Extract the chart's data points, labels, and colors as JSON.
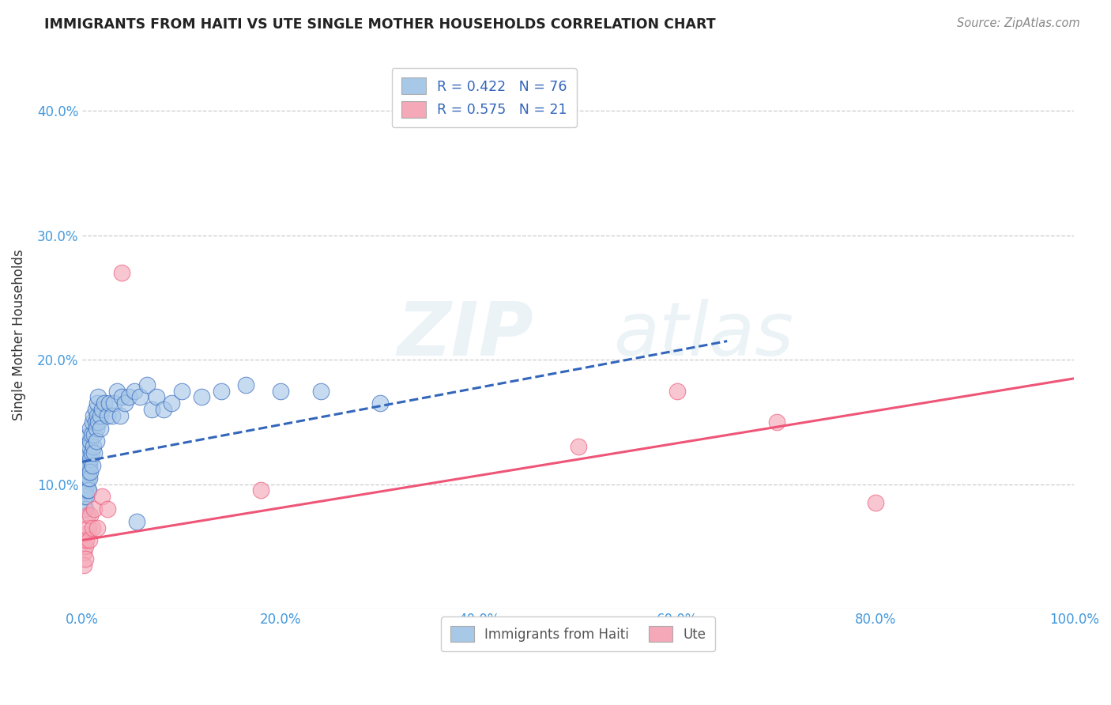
{
  "title": "IMMIGRANTS FROM HAITI VS UTE SINGLE MOTHER HOUSEHOLDS CORRELATION CHART",
  "source_text": "Source: ZipAtlas.com",
  "ylabel": "Single Mother Households",
  "xlim": [
    0,
    1.0
  ],
  "ylim": [
    0,
    0.44
  ],
  "xticks": [
    0.0,
    0.2,
    0.4,
    0.6,
    0.8,
    1.0
  ],
  "xtick_labels": [
    "0.0%",
    "20.0%",
    "40.0%",
    "60.0%",
    "80.0%",
    "100.0%"
  ],
  "yticks": [
    0.0,
    0.1,
    0.2,
    0.3,
    0.4
  ],
  "ytick_labels": [
    "",
    "10.0%",
    "20.0%",
    "30.0%",
    "40.0%"
  ],
  "legend1_label": "R = 0.422   N = 76",
  "legend2_label": "R = 0.575   N = 21",
  "legend_xlabel": "Immigrants from Haiti",
  "legend_xlabel2": "Ute",
  "haiti_color": "#a8c8e8",
  "ute_color": "#f4a8b8",
  "haiti_trendline_color": "#3366bb",
  "ute_trendline_color": "#ee5577",
  "background_color": "#ffffff",
  "grid_color": "#cccccc",
  "haiti_scatter": [
    [
      0.001,
      0.095
    ],
    [
      0.001,
      0.105
    ],
    [
      0.001,
      0.115
    ],
    [
      0.001,
      0.085
    ],
    [
      0.002,
      0.1
    ],
    [
      0.002,
      0.12
    ],
    [
      0.002,
      0.09
    ],
    [
      0.002,
      0.11
    ],
    [
      0.003,
      0.105
    ],
    [
      0.003,
      0.095
    ],
    [
      0.003,
      0.115
    ],
    [
      0.003,
      0.08
    ],
    [
      0.004,
      0.11
    ],
    [
      0.004,
      0.13
    ],
    [
      0.004,
      0.1
    ],
    [
      0.004,
      0.09
    ],
    [
      0.005,
      0.12
    ],
    [
      0.005,
      0.095
    ],
    [
      0.005,
      0.105
    ],
    [
      0.005,
      0.115
    ],
    [
      0.006,
      0.13
    ],
    [
      0.006,
      0.11
    ],
    [
      0.006,
      0.095
    ],
    [
      0.006,
      0.125
    ],
    [
      0.007,
      0.14
    ],
    [
      0.007,
      0.115
    ],
    [
      0.007,
      0.105
    ],
    [
      0.007,
      0.13
    ],
    [
      0.008,
      0.135
    ],
    [
      0.008,
      0.12
    ],
    [
      0.008,
      0.11
    ],
    [
      0.008,
      0.145
    ],
    [
      0.009,
      0.14
    ],
    [
      0.009,
      0.125
    ],
    [
      0.01,
      0.15
    ],
    [
      0.01,
      0.115
    ],
    [
      0.011,
      0.13
    ],
    [
      0.011,
      0.155
    ],
    [
      0.012,
      0.14
    ],
    [
      0.012,
      0.125
    ],
    [
      0.013,
      0.15
    ],
    [
      0.013,
      0.16
    ],
    [
      0.014,
      0.145
    ],
    [
      0.014,
      0.135
    ],
    [
      0.015,
      0.155
    ],
    [
      0.015,
      0.165
    ],
    [
      0.016,
      0.15
    ],
    [
      0.016,
      0.17
    ],
    [
      0.018,
      0.155
    ],
    [
      0.018,
      0.145
    ],
    [
      0.02,
      0.16
    ],
    [
      0.022,
      0.165
    ],
    [
      0.025,
      0.155
    ],
    [
      0.027,
      0.165
    ],
    [
      0.03,
      0.155
    ],
    [
      0.032,
      0.165
    ],
    [
      0.035,
      0.175
    ],
    [
      0.038,
      0.155
    ],
    [
      0.04,
      0.17
    ],
    [
      0.043,
      0.165
    ],
    [
      0.047,
      0.17
    ],
    [
      0.052,
      0.175
    ],
    [
      0.058,
      0.17
    ],
    [
      0.065,
      0.18
    ],
    [
      0.07,
      0.16
    ],
    [
      0.075,
      0.17
    ],
    [
      0.082,
      0.16
    ],
    [
      0.09,
      0.165
    ],
    [
      0.1,
      0.175
    ],
    [
      0.12,
      0.17
    ],
    [
      0.14,
      0.175
    ],
    [
      0.165,
      0.18
    ],
    [
      0.2,
      0.175
    ],
    [
      0.24,
      0.175
    ],
    [
      0.055,
      0.07
    ],
    [
      0.3,
      0.165
    ]
  ],
  "ute_scatter": [
    [
      0.001,
      0.045
    ],
    [
      0.001,
      0.035
    ],
    [
      0.002,
      0.06
    ],
    [
      0.003,
      0.05
    ],
    [
      0.003,
      0.04
    ],
    [
      0.004,
      0.055
    ],
    [
      0.005,
      0.075
    ],
    [
      0.006,
      0.065
    ],
    [
      0.007,
      0.055
    ],
    [
      0.008,
      0.075
    ],
    [
      0.01,
      0.065
    ],
    [
      0.012,
      0.08
    ],
    [
      0.015,
      0.065
    ],
    [
      0.02,
      0.09
    ],
    [
      0.04,
      0.27
    ],
    [
      0.18,
      0.095
    ],
    [
      0.5,
      0.13
    ],
    [
      0.6,
      0.175
    ],
    [
      0.7,
      0.15
    ],
    [
      0.8,
      0.085
    ],
    [
      0.025,
      0.08
    ]
  ],
  "haiti_trendline_x": [
    0.0,
    0.65
  ],
  "haiti_trendline_y": [
    0.118,
    0.215
  ],
  "ute_trendline_x": [
    0.0,
    1.0
  ],
  "ute_trendline_y": [
    0.055,
    0.185
  ],
  "watermark_zip": "ZIP",
  "watermark_atlas": "atlas"
}
